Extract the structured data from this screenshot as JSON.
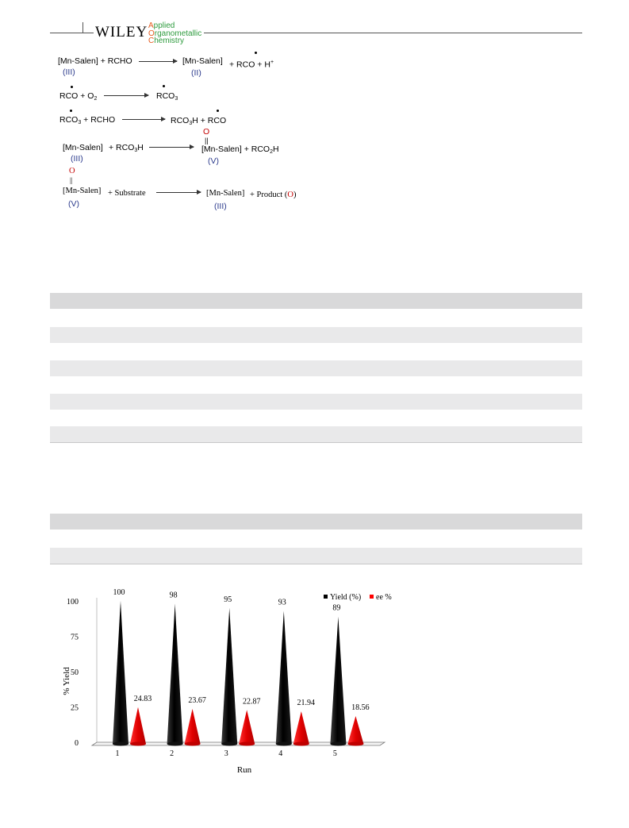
{
  "header": {
    "publisher": "WILEY",
    "journal_line1_cap": "A",
    "journal_line1_rest": "pplied",
    "journal_line2_cap": "O",
    "journal_line2_rest": "rganometallic",
    "journal_line3_cap": "C",
    "journal_line3_rest": "hemistry"
  },
  "scheme": {
    "r1_left": "[Mn-Salen] + RCHO",
    "r1_left_ox": "(III)",
    "r1_right_a": "[Mn-Salen]",
    "r1_right_b": "+ RCO + H",
    "r1_right_sup": "+",
    "r1_right_ox": "(II)",
    "r2_left": "RCO + O",
    "r2_left_sub": "2",
    "r2_right": "RCO",
    "r2_right_sub": "3",
    "r3_left_a": "RCO",
    "r3_left_sub": "3",
    "r3_left_b": " + RCHO",
    "r3_right_a": "RCO",
    "r3_right_sub": "3",
    "r3_right_b": "H + RCO",
    "r4_left_a": "[Mn-Salen]",
    "r4_left_b": "+ RCO",
    "r4_left_sub": "3",
    "r4_left_c": "H",
    "r4_left_ox": "(III)",
    "r4_right_o": "O",
    "r4_right_bond": "||",
    "r4_right_a": "[Mn-Salen] + RCO",
    "r4_right_sub": "2",
    "r4_right_b": "H",
    "r4_right_ox": "(V)",
    "r5_left_o": "O",
    "r5_left_bond": "||",
    "r5_left_a": "[Mn-Salen]",
    "r5_left_b": "+ Substrate",
    "r5_left_ox": "(V)",
    "r5_right_a": "[Mn-Salen]",
    "r5_right_b": "+ Product (",
    "r5_right_o": "O",
    "r5_right_c": ")",
    "r5_right_ox": "(III)"
  },
  "chart_data": {
    "type": "bar",
    "categories": [
      "1",
      "2",
      "3",
      "4",
      "5"
    ],
    "series": [
      {
        "name": "Yield (%)",
        "values": [
          100,
          98,
          95,
          93,
          89
        ],
        "color": "#000000"
      },
      {
        "name": "ee %",
        "values": [
          24.83,
          23.67,
          22.87,
          21.94,
          18.56
        ],
        "color": "#ff0000"
      }
    ],
    "value_labels": {
      "yield": [
        "100",
        "98",
        "95",
        "93",
        "89"
      ],
      "ee": [
        "24.83",
        "23.67",
        "22.87",
        "21.94",
        "18.56"
      ]
    },
    "yticks": [
      "0",
      "25",
      "50",
      "75",
      "100"
    ],
    "ylim": [
      0,
      100
    ],
    "xlabel": "Run",
    "ylabel": "% Yield",
    "legend_position": "top-right",
    "bar_shape": "cone"
  }
}
